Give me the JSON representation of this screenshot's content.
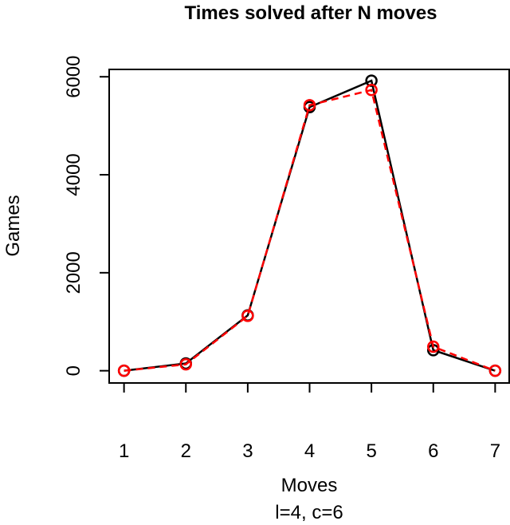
{
  "chart_data": {
    "type": "line",
    "title": "Times solved after N moves",
    "x_label": "Moves",
    "subtitle": "l=4, c=6",
    "y_label": "Games",
    "x": [
      1,
      2,
      3,
      4,
      5,
      6,
      7
    ],
    "series": [
      {
        "color": "#000000",
        "values": [
          0,
          150,
          1130,
          5380,
          5920,
          420,
          0
        ]
      },
      {
        "color": "#ff0000",
        "dashed": true,
        "values": [
          0,
          130,
          1120,
          5420,
          5730,
          490,
          0
        ]
      }
    ],
    "xlim": [
      0.76,
      7.24
    ],
    "ylim": [
      -250,
      6150
    ],
    "xticks": [
      1,
      2,
      3,
      4,
      5,
      6,
      7
    ],
    "yticks": [
      0,
      2000,
      4000,
      6000
    ]
  }
}
